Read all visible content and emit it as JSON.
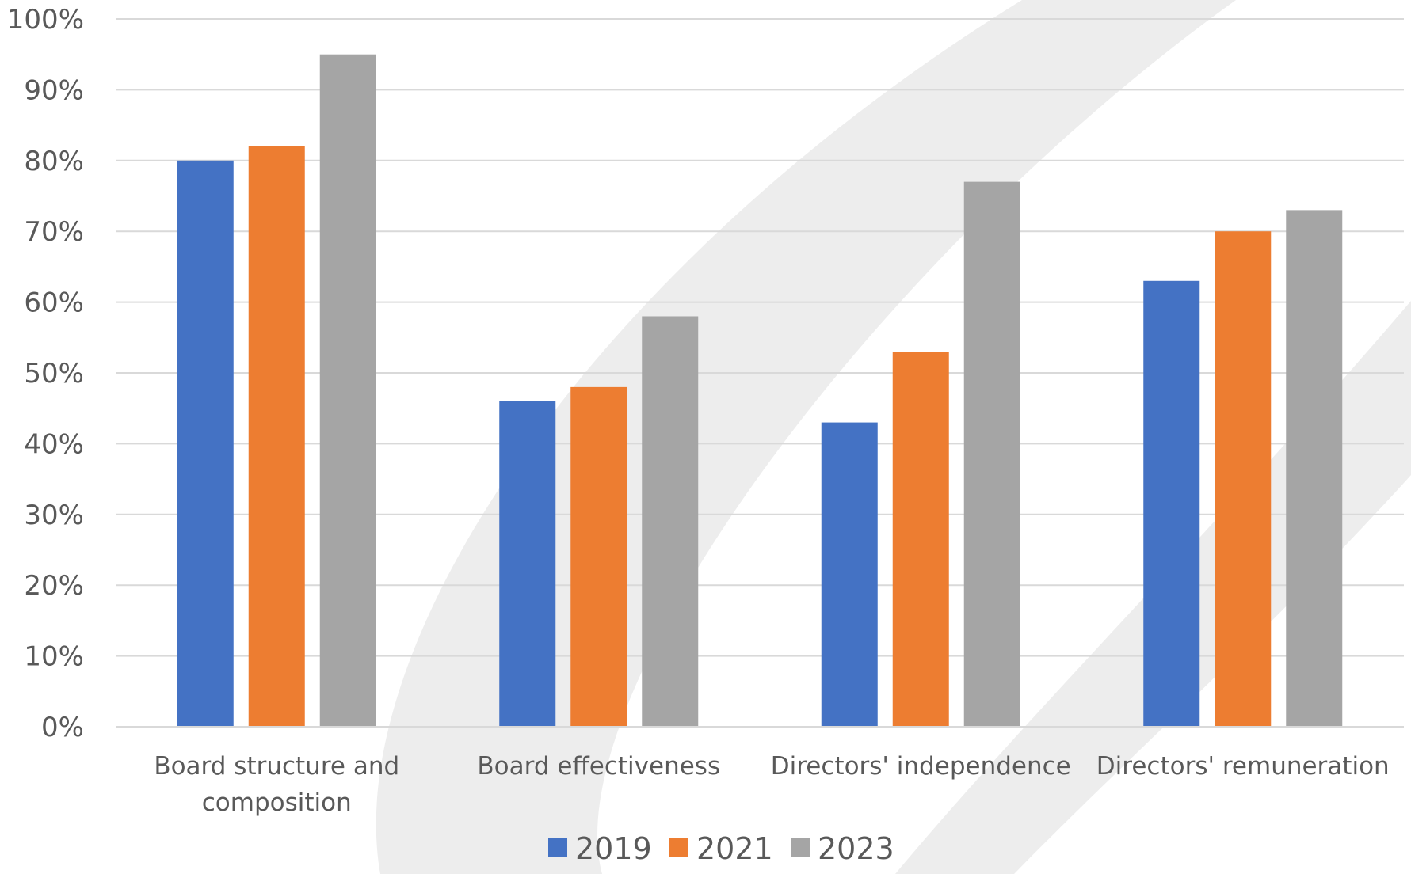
{
  "chart_data": {
    "type": "bar",
    "title": "",
    "xlabel": "",
    "ylabel": "",
    "categories": [
      [
        "Board structure and",
        "composition"
      ],
      [
        "Board effectiveness"
      ],
      [
        "Directors' independence"
      ],
      [
        "Directors' remuneration"
      ]
    ],
    "series": [
      {
        "name": "2019",
        "color": "#4472C4",
        "values": [
          0.8,
          0.46,
          0.43,
          0.63
        ]
      },
      {
        "name": "2021",
        "color": "#ED7D31",
        "values": [
          0.82,
          0.48,
          0.53,
          0.7
        ]
      },
      {
        "name": "2023",
        "color": "#A5A5A5",
        "values": [
          0.95,
          0.58,
          0.77,
          0.73
        ]
      }
    ],
    "ylim": [
      0,
      1
    ],
    "yticks": [
      {
        "value": 0.0,
        "label": "0%"
      },
      {
        "value": 0.1,
        "label": "10%"
      },
      {
        "value": 0.2,
        "label": "20%"
      },
      {
        "value": 0.3,
        "label": "30%"
      },
      {
        "value": 0.4,
        "label": "40%"
      },
      {
        "value": 0.5,
        "label": "50%"
      },
      {
        "value": 0.6,
        "label": "60%"
      },
      {
        "value": 0.7,
        "label": "70%"
      },
      {
        "value": 0.8,
        "label": "80%"
      },
      {
        "value": 0.9,
        "label": "90%"
      },
      {
        "value": 1.0,
        "label": "100%"
      }
    ],
    "grid": true,
    "legend_position": "bottom"
  },
  "colors": {
    "gridline": "#D9D9D9",
    "text": "#595959",
    "watermark": "#EDEDED"
  }
}
